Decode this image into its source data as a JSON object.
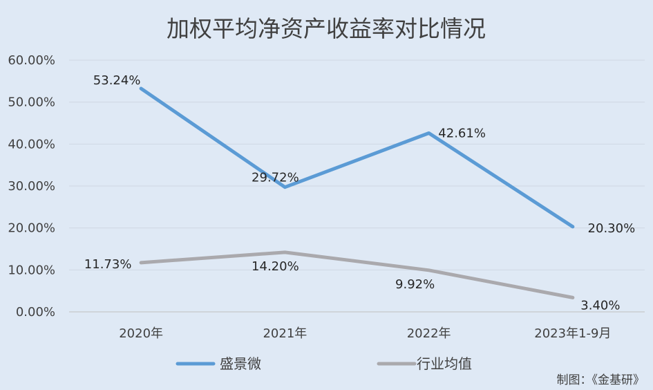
{
  "chart_data": {
    "type": "line",
    "title": "加权平均净资产收益率对比情况",
    "categories": [
      "2020年",
      "2021年",
      "2022年",
      "2023年1-9月"
    ],
    "series": [
      {
        "name": "盛景微",
        "values": [
          53.24,
          29.72,
          42.61,
          20.3
        ],
        "labels": [
          "53.24%",
          "29.72%",
          "42.61%",
          "20.30%"
        ],
        "color": "#5b9bd5"
      },
      {
        "name": "行业均值",
        "values": [
          11.73,
          14.2,
          9.92,
          3.4
        ],
        "labels": [
          "11.73%",
          "14.20%",
          "9.92%",
          "3.40%"
        ],
        "color": "#aaa9ad"
      }
    ],
    "ylim": [
      0,
      60
    ],
    "yticks": [
      "0.00%",
      "10.00%",
      "20.00%",
      "30.00%",
      "40.00%",
      "50.00%",
      "60.00%"
    ],
    "grid": true,
    "legend": "bottom"
  },
  "credit": "制图：《金基研》"
}
